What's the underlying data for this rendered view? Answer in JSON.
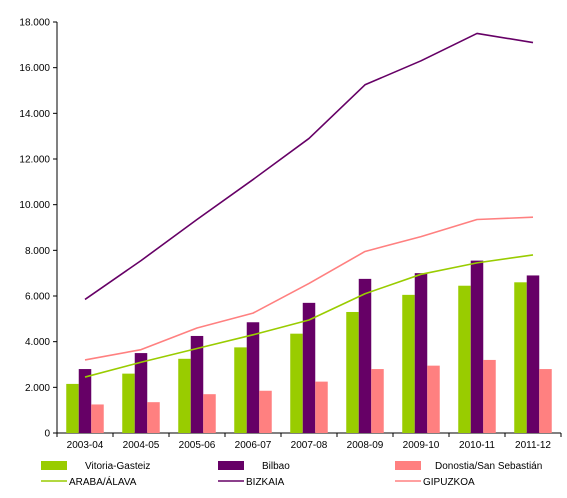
{
  "chart_data": {
    "type": "bar",
    "categories": [
      "2003-04",
      "2004-05",
      "2005-06",
      "2006-07",
      "2007-08",
      "2008-09",
      "2009-10",
      "2010-11",
      "2011-12"
    ],
    "ylim": [
      0,
      18000
    ],
    "yticks": [
      0,
      2000,
      4000,
      6000,
      8000,
      10000,
      12000,
      14000,
      16000,
      18000
    ],
    "ytick_labels": [
      "0",
      "2.000",
      "4.000",
      "6.000",
      "8.000",
      "10.000",
      "12.000",
      "14.000",
      "16.000",
      "18.000"
    ],
    "grid": false,
    "legend_position": "bottom",
    "bar_series": [
      {
        "name": "Vitoria-Gasteiz",
        "color": "#99cc00",
        "values": [
          2150,
          2600,
          3250,
          3750,
          4350,
          5300,
          6050,
          6450,
          6600
        ]
      },
      {
        "name": "Bilbao",
        "color": "#660066",
        "values": [
          2800,
          3500,
          4250,
          4850,
          5700,
          6750,
          7000,
          7550,
          6900
        ]
      },
      {
        "name": "Donostia/San Sebastián",
        "color": "#ff8080",
        "values": [
          1250,
          1350,
          1700,
          1850,
          2250,
          2800,
          2950,
          3200,
          2800
        ]
      }
    ],
    "line_series": [
      {
        "name": "ARABA/ÁLAVA",
        "color": "#99cc00",
        "values": [
          2450,
          3100,
          3700,
          4300,
          4950,
          6100,
          6950,
          7450,
          7800
        ]
      },
      {
        "name": "BIZKAIA",
        "color": "#660066",
        "values": [
          5850,
          7550,
          9350,
          11100,
          12900,
          15250,
          16300,
          17500,
          17100
        ]
      },
      {
        "name": "GIPUZKOA",
        "color": "#ff8080",
        "values": [
          3200,
          3650,
          4600,
          5250,
          6550,
          7950,
          8600,
          9350,
          9450
        ]
      }
    ]
  }
}
